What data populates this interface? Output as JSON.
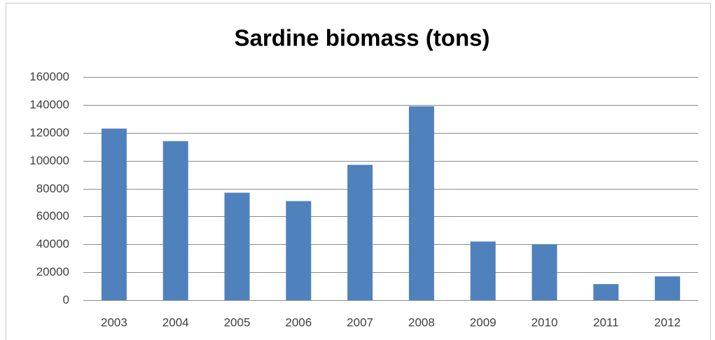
{
  "chart_data": {
    "type": "bar",
    "title": "Sardine biomass (tons)",
    "categories": [
      "2003",
      "2004",
      "2005",
      "2006",
      "2007",
      "2008",
      "2009",
      "2010",
      "2011",
      "2012"
    ],
    "values": [
      123000,
      114000,
      77000,
      71000,
      97000,
      139000,
      42000,
      40000,
      11500,
      17000
    ],
    "color": "#4f81bd",
    "ylim": [
      0,
      160000
    ],
    "yticks": [
      0,
      20000,
      40000,
      60000,
      80000,
      100000,
      120000,
      140000,
      160000
    ],
    "grid": true
  }
}
